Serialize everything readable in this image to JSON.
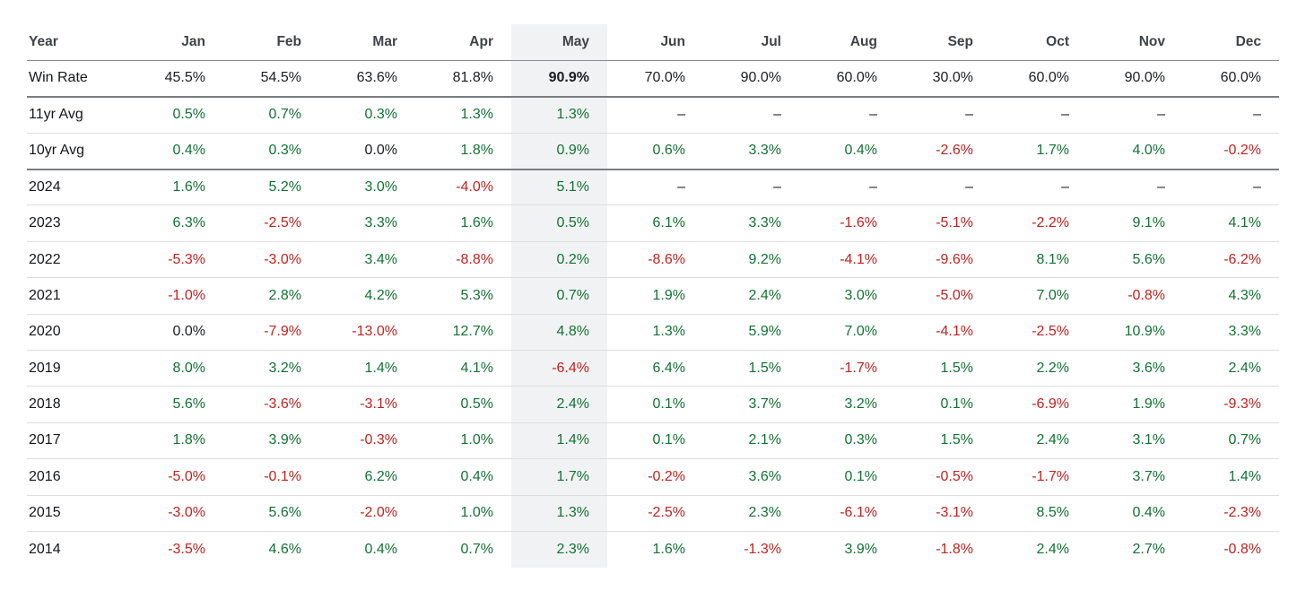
{
  "chart_data": {
    "type": "table",
    "columns": [
      "Year",
      "Jan",
      "Feb",
      "Mar",
      "Apr",
      "May",
      "Jun",
      "Jul",
      "Aug",
      "Sep",
      "Oct",
      "Nov",
      "Dec"
    ],
    "highlighted_column": "May",
    "divider_after": [
      "Win Rate",
      "10yr Avg"
    ],
    "rows": [
      {
        "label": "Win Rate",
        "kind": "winrate",
        "values": [
          "45.5%",
          "54.5%",
          "63.6%",
          "81.8%",
          "90.9%",
          "70.0%",
          "90.0%",
          "60.0%",
          "30.0%",
          "60.0%",
          "90.0%",
          "60.0%"
        ]
      },
      {
        "label": "11yr Avg",
        "kind": "avg",
        "values": [
          "0.5%",
          "0.7%",
          "0.3%",
          "1.3%",
          "1.3%",
          "–",
          "–",
          "–",
          "–",
          "–",
          "–",
          "–"
        ]
      },
      {
        "label": "10yr Avg",
        "kind": "avg",
        "values": [
          "0.4%",
          "0.3%",
          "0.0%",
          "1.8%",
          "0.9%",
          "0.6%",
          "3.3%",
          "0.4%",
          "-2.6%",
          "1.7%",
          "4.0%",
          "-0.2%"
        ]
      },
      {
        "label": "2024",
        "kind": "year",
        "values": [
          "1.6%",
          "5.2%",
          "3.0%",
          "-4.0%",
          "5.1%",
          "–",
          "–",
          "–",
          "–",
          "–",
          "–",
          "–"
        ]
      },
      {
        "label": "2023",
        "kind": "year",
        "values": [
          "6.3%",
          "-2.5%",
          "3.3%",
          "1.6%",
          "0.5%",
          "6.1%",
          "3.3%",
          "-1.6%",
          "-5.1%",
          "-2.2%",
          "9.1%",
          "4.1%"
        ]
      },
      {
        "label": "2022",
        "kind": "year",
        "values": [
          "-5.3%",
          "-3.0%",
          "3.4%",
          "-8.8%",
          "0.2%",
          "-8.6%",
          "9.2%",
          "-4.1%",
          "-9.6%",
          "8.1%",
          "5.6%",
          "-6.2%"
        ]
      },
      {
        "label": "2021",
        "kind": "year",
        "values": [
          "-1.0%",
          "2.8%",
          "4.2%",
          "5.3%",
          "0.7%",
          "1.9%",
          "2.4%",
          "3.0%",
          "-5.0%",
          "7.0%",
          "-0.8%",
          "4.3%"
        ]
      },
      {
        "label": "2020",
        "kind": "year",
        "values": [
          "0.0%",
          "-7.9%",
          "-13.0%",
          "12.7%",
          "4.8%",
          "1.3%",
          "5.9%",
          "7.0%",
          "-4.1%",
          "-2.5%",
          "10.9%",
          "3.3%"
        ]
      },
      {
        "label": "2019",
        "kind": "year",
        "values": [
          "8.0%",
          "3.2%",
          "1.4%",
          "4.1%",
          "-6.4%",
          "6.4%",
          "1.5%",
          "-1.7%",
          "1.5%",
          "2.2%",
          "3.6%",
          "2.4%"
        ]
      },
      {
        "label": "2018",
        "kind": "year",
        "values": [
          "5.6%",
          "-3.6%",
          "-3.1%",
          "0.5%",
          "2.4%",
          "0.1%",
          "3.7%",
          "3.2%",
          "0.1%",
          "-6.9%",
          "1.9%",
          "-9.3%"
        ]
      },
      {
        "label": "2017",
        "kind": "year",
        "values": [
          "1.8%",
          "3.9%",
          "-0.3%",
          "1.0%",
          "1.4%",
          "0.1%",
          "2.1%",
          "0.3%",
          "1.5%",
          "2.4%",
          "3.1%",
          "0.7%"
        ]
      },
      {
        "label": "2016",
        "kind": "year",
        "values": [
          "-5.0%",
          "-0.1%",
          "6.2%",
          "0.4%",
          "1.7%",
          "-0.2%",
          "3.6%",
          "0.1%",
          "-0.5%",
          "-1.7%",
          "3.7%",
          "1.4%"
        ]
      },
      {
        "label": "2015",
        "kind": "year",
        "values": [
          "-3.0%",
          "5.6%",
          "-2.0%",
          "1.0%",
          "1.3%",
          "-2.5%",
          "2.3%",
          "-6.1%",
          "-3.1%",
          "8.5%",
          "0.4%",
          "-2.3%"
        ]
      },
      {
        "label": "2014",
        "kind": "year",
        "values": [
          "-3.5%",
          "4.6%",
          "0.4%",
          "0.7%",
          "2.3%",
          "1.6%",
          "-1.3%",
          "3.9%",
          "-1.8%",
          "2.4%",
          "2.7%",
          "-0.8%"
        ]
      }
    ],
    "colors": {
      "positive": "#137333",
      "negative": "#c5221f",
      "neutral": "#1c1e21",
      "header_text": "#3f4347",
      "highlight_bg": "#f1f2f4",
      "border_light": "#dcdee0",
      "border_dark": "#7a7e83",
      "border_header": "#888c90"
    }
  }
}
